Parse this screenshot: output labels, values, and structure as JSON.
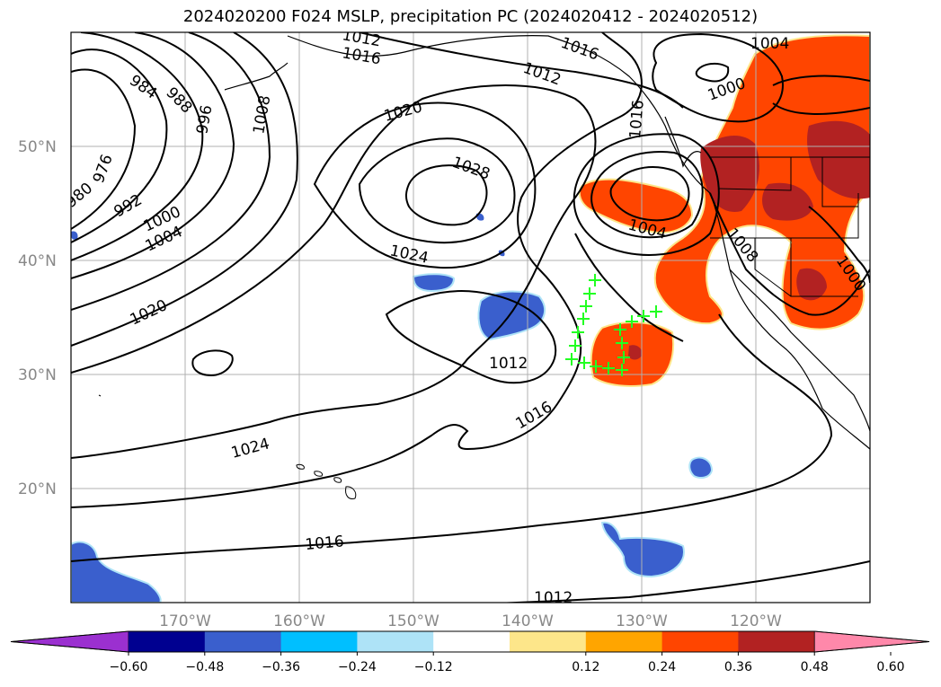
{
  "title": "2024020200 F024 MSLP, precipitation PC (2024020412 - 2024020512)",
  "map": {
    "lat_labels": [
      "50°N",
      "40°N",
      "30°N",
      "20°N"
    ],
    "lon_labels": [
      "170°W",
      "160°W",
      "150°W",
      "140°W",
      "130°W",
      "120°W"
    ],
    "isobar_labels": [
      "984",
      "988",
      "996",
      "1008",
      "976",
      "980",
      "992",
      "1000",
      "1004",
      "1020",
      "1020",
      "1028",
      "1024",
      "1012",
      "1016",
      "1024",
      "1016",
      "1012",
      "1016",
      "1012",
      "1016",
      "1004",
      "1000",
      "1004",
      "1008",
      "1000",
      "1012",
      "1016"
    ]
  },
  "colorbar": {
    "colors": [
      "#9b30d0",
      "#000090",
      "#3a5fcd",
      "#00bfff",
      "#aee3f7",
      "#ffffff",
      "#fde68a",
      "#ffa500",
      "#ff4500",
      "#b22222",
      "#ff88aa"
    ],
    "tick_labels": [
      "−0.60",
      "−0.48",
      "−0.36",
      "−0.24",
      "−0.12",
      "0.12",
      "0.24",
      "0.36",
      "0.48",
      "0.60"
    ]
  },
  "marker_color": "#22ff22"
}
